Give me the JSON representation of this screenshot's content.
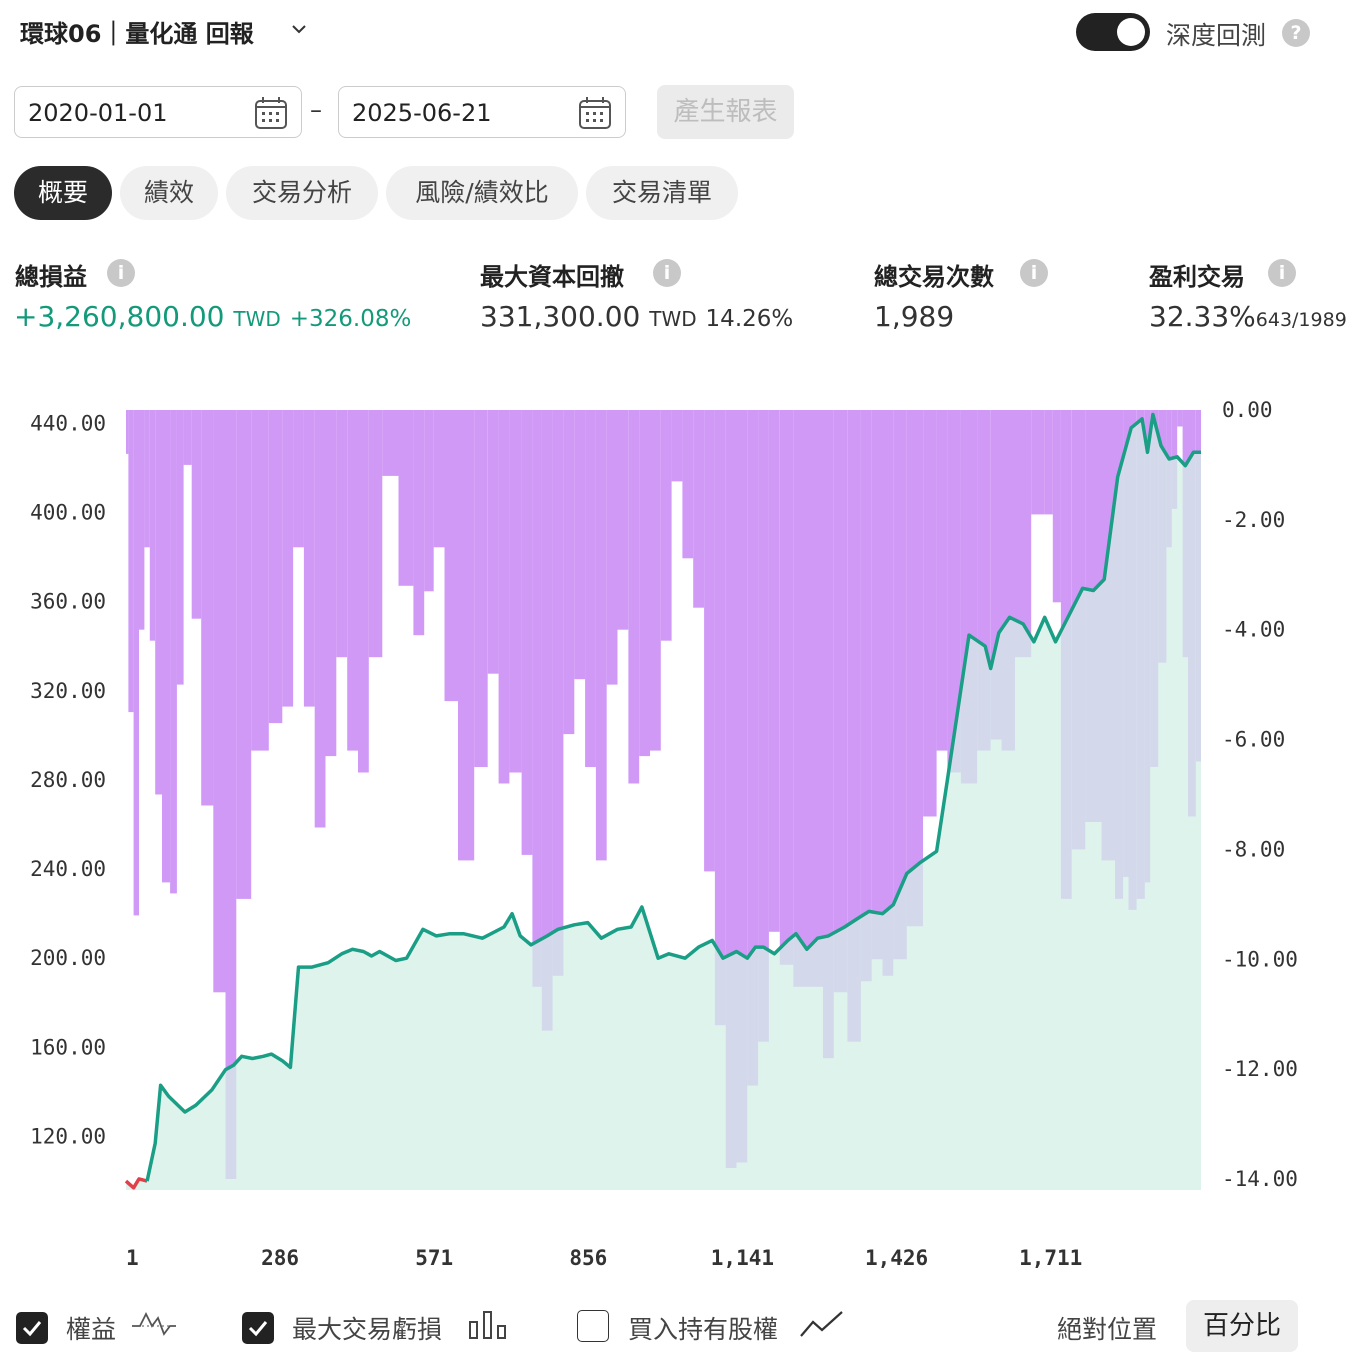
{
  "header": {
    "title": "環球06｜量化通 回報",
    "toggle_label": "深度回測",
    "toggle_on": true
  },
  "date_range": {
    "start": "2020-01-01",
    "end": "2025-06-21",
    "separator": "–",
    "generate_label": "產生報表"
  },
  "tabs": [
    {
      "label": "概要",
      "active": true
    },
    {
      "label": "績效",
      "active": false
    },
    {
      "label": "交易分析",
      "active": false
    },
    {
      "label": "風險/績效比",
      "active": false
    },
    {
      "label": "交易清單",
      "active": false
    }
  ],
  "stats": {
    "net_profit": {
      "label": "總損益",
      "value": "+3,260,800.00",
      "unit": "TWD",
      "pct": "+326.08%"
    },
    "max_drawdown": {
      "label": "最大資本回撤",
      "value": "331,300.00",
      "unit": "TWD",
      "pct": "14.26%"
    },
    "total_trades": {
      "label": "總交易次數",
      "value": "1,989"
    },
    "profitable": {
      "label": "盈利交易",
      "value": "32.33%",
      "detail": "643/1989"
    }
  },
  "colors": {
    "equity_line": "#1a9e86",
    "equity_fill": "#d4efe7",
    "equity_negative": "#e0404a",
    "drawdown_bar": "#c98bf5",
    "accent_green": "#129a7a"
  },
  "chart_data": {
    "type": "area",
    "title": "",
    "left_axis": {
      "ylim": [
        96,
        446
      ],
      "ticks": [
        "440.00",
        "400.00",
        "360.00",
        "320.00",
        "280.00",
        "240.00",
        "200.00",
        "160.00",
        "120.00"
      ]
    },
    "right_axis": {
      "ylim": [
        0,
        -14.2
      ],
      "ticks": [
        "0.00",
        "-2.00",
        "-4.00",
        "-6.00",
        "-8.00",
        "-10.00",
        "-12.00",
        "-14.00"
      ]
    },
    "x_ticks": [
      "1",
      "286",
      "571",
      "856",
      "1,141",
      "1,426",
      "1,711"
    ],
    "xlim": [
      1,
      1989
    ],
    "series": [
      {
        "name": "權益",
        "type": "line",
        "axis": "left",
        "x": [
          1,
          15,
          25,
          40,
          55,
          65,
          80,
          110,
          130,
          160,
          185,
          200,
          215,
          235,
          255,
          270,
          290,
          305,
          320,
          345,
          375,
          400,
          420,
          440,
          448,
          455,
          470,
          500,
          520,
          550,
          575,
          600,
          625,
          660,
          700,
          715,
          730,
          750,
          780,
          800,
          830,
          855,
          880,
          910,
          935,
          955,
          985,
          1005,
          1035,
          1060,
          1085,
          1105,
          1130,
          1150,
          1165,
          1180,
          1200,
          1225,
          1240,
          1260,
          1280,
          1300,
          1330,
          1355,
          1375,
          1400,
          1420,
          1445,
          1470,
          1500,
          1520,
          1560,
          1590,
          1600,
          1615,
          1635,
          1660,
          1680,
          1700,
          1720,
          1745,
          1770,
          1790,
          1810,
          1835,
          1860,
          1880,
          1890,
          1900,
          1915,
          1930,
          1945,
          1960,
          1975,
          1989
        ],
        "y": [
          100,
          97,
          101,
          100,
          117,
          143,
          138,
          131,
          134,
          141,
          150,
          152,
          156,
          155,
          156,
          157,
          154,
          151,
          196,
          196,
          198,
          202,
          204,
          203,
          202,
          201,
          203,
          199,
          200,
          213,
          210,
          211,
          211,
          209,
          214,
          220,
          210,
          206,
          210,
          213,
          215,
          216,
          209,
          213,
          214,
          223,
          200,
          202,
          200,
          205,
          208,
          200,
          203,
          200,
          205,
          205,
          202,
          208,
          211,
          204,
          209,
          210,
          214,
          218,
          221,
          220,
          224,
          238,
          243,
          248,
          280,
          345,
          340,
          330,
          346,
          353,
          350,
          342,
          353,
          342,
          354,
          366,
          365,
          370,
          416,
          438,
          442,
          427,
          444,
          430,
          424,
          425,
          421,
          427,
          427
        ]
      },
      {
        "name": "最大交易虧損",
        "type": "bar",
        "axis": "right",
        "x": [
          1,
          10,
          20,
          30,
          40,
          50,
          60,
          75,
          90,
          100,
          115,
          130,
          150,
          175,
          195,
          215,
          250,
          280,
          300,
          320,
          340,
          360,
          380,
          400,
          420,
          440,
          460,
          490,
          520,
          545,
          560,
          580,
          600,
          630,
          660,
          680,
          700,
          720,
          745,
          760,
          780,
          800,
          820,
          840,
          860,
          880,
          900,
          920,
          940,
          960,
          980,
          1000,
          1020,
          1040,
          1060,
          1080,
          1100,
          1120,
          1140,
          1160,
          1180,
          1200,
          1220,
          1250,
          1280,
          1300,
          1320,
          1350,
          1370,
          1390,
          1410,
          1430,
          1460,
          1490,
          1510,
          1530,
          1560,
          1590,
          1610,
          1630,
          1660,
          1690,
          1710,
          1720,
          1740,
          1760,
          1790,
          1820,
          1840,
          1850,
          1860,
          1880,
          1890,
          1900,
          1920,
          1930,
          1940,
          1950,
          1960,
          1970,
          1989
        ],
        "y": [
          -0.8,
          -5.5,
          -9.2,
          -4.0,
          -2.5,
          -4.2,
          -7.0,
          -8.6,
          -8.8,
          -5.0,
          -1.0,
          -3.8,
          -7.2,
          -10.6,
          -14.0,
          -8.9,
          -6.2,
          -5.7,
          -5.4,
          -2.5,
          -5.4,
          -7.6,
          -6.3,
          -4.5,
          -6.2,
          -6.6,
          -4.5,
          -1.2,
          -3.2,
          -4.1,
          -3.3,
          -2.5,
          -5.3,
          -8.2,
          -6.5,
          -4.8,
          -6.8,
          -6.6,
          -8.1,
          -10.5,
          -11.3,
          -10.3,
          -5.9,
          -4.9,
          -6.5,
          -8.2,
          -5.0,
          -4.0,
          -6.8,
          -6.3,
          -6.2,
          -4.2,
          -1.3,
          -2.7,
          -3.6,
          -8.4,
          -11.2,
          -13.8,
          -13.7,
          -12.3,
          -11.5,
          -9.5,
          -10.1,
          -10.5,
          -10.5,
          -11.8,
          -10.6,
          -11.5,
          -10.4,
          -10.0,
          -10.3,
          -10.0,
          -9.4,
          -7.4,
          -6.2,
          -6.6,
          -6.8,
          -6.2,
          -6.0,
          -6.2,
          -4.5,
          -1.9,
          -1.9,
          -3.5,
          -8.9,
          -8.0,
          -7.5,
          -8.2,
          -8.9,
          -8.5,
          -9.1,
          -8.9,
          -8.6,
          -6.5,
          -4.6,
          -2.5,
          -1.8,
          -0.3,
          -4.5,
          -7.4,
          -6.4
        ]
      }
    ],
    "legend": [
      {
        "label": "權益",
        "checked": true
      },
      {
        "label": "最大交易虧損",
        "checked": true
      },
      {
        "label": "買入持有股權",
        "checked": false
      }
    ],
    "scale_modes": {
      "absolute": "絕對位置",
      "percent": "百分比",
      "active": "percent"
    }
  }
}
